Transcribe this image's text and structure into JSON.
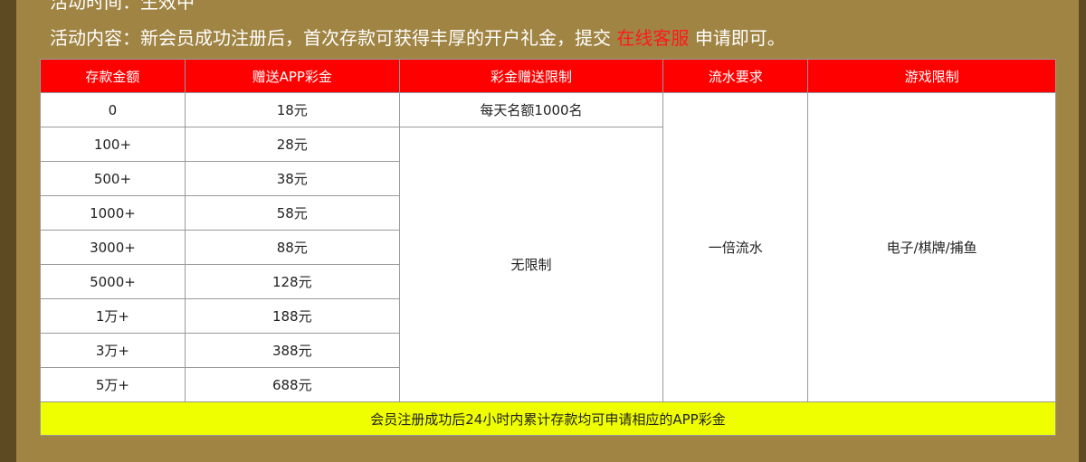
{
  "intro": {
    "time_line": "活动时间：生效中",
    "content_prefix": "活动内容：新会员成功注册后，首次存款可获得丰厚的开户礼金，提交",
    "service_link": "在线客服",
    "content_suffix": "申请即可。"
  },
  "table": {
    "headers": [
      "存款金额",
      "赠送APP彩金",
      "彩金赠送限制",
      "流水要求",
      "游戏限制"
    ],
    "rows": [
      {
        "deposit": "0",
        "bonus": "18元"
      },
      {
        "deposit": "100+",
        "bonus": "28元"
      },
      {
        "deposit": "500+",
        "bonus": "38元"
      },
      {
        "deposit": "1000+",
        "bonus": "58元"
      },
      {
        "deposit": "3000+",
        "bonus": "88元"
      },
      {
        "deposit": "5000+",
        "bonus": "128元"
      },
      {
        "deposit": "1万+",
        "bonus": "188元"
      },
      {
        "deposit": "3万+",
        "bonus": "388元"
      },
      {
        "deposit": "5万+",
        "bonus": "688元"
      }
    ],
    "limit_first": "每天名额1000名",
    "limit_rest": "无限制",
    "turnover": "一倍流水",
    "games": "电子/棋牌/捕鱼",
    "footer": "会员注册成功后24小时内累计存款均可申请相应的APP彩金"
  },
  "colors": {
    "header": "#ff0000",
    "footer": "#f0ff00",
    "background": "#a08443"
  }
}
